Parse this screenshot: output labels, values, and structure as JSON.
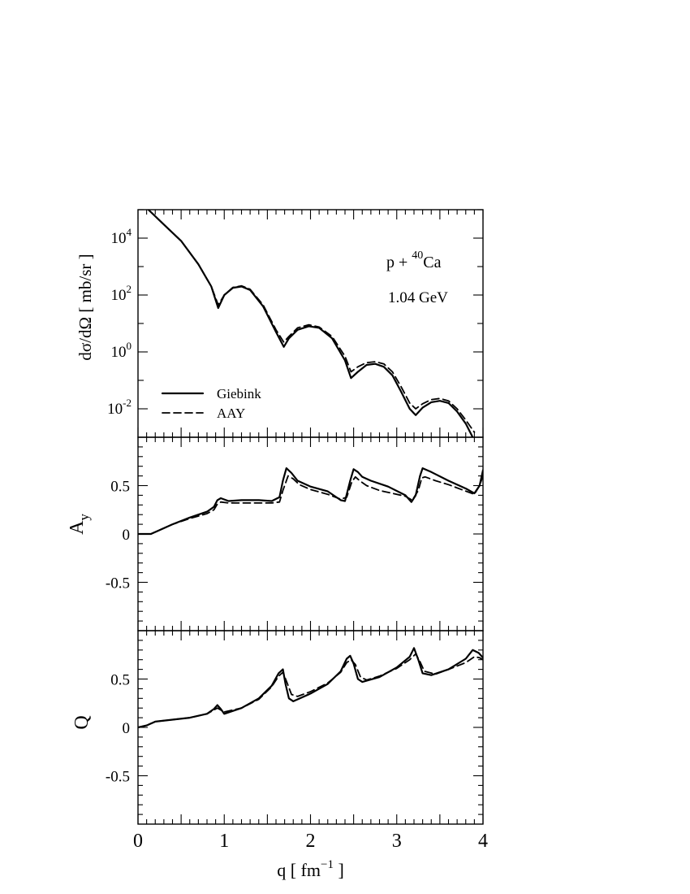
{
  "chart_data": [
    {
      "type": "line",
      "panel": "cross-section",
      "ylabel": "dσ/dΩ  [ mb/sr ]",
      "yscale": "log",
      "ylim": [
        0.001,
        100000
      ],
      "xlim": [
        0,
        4
      ],
      "yticks": [
        {
          "value": 10000,
          "base": "10",
          "exp": "4"
        },
        {
          "value": 100,
          "base": "10",
          "exp": "2"
        },
        {
          "value": 1,
          "base": "10",
          "exp": "0"
        },
        {
          "value": 0.01,
          "base": "10",
          "exp": "-2"
        }
      ],
      "annotations": {
        "reaction_base": "p + ",
        "reaction_mass": "40",
        "reaction_target": "Ca",
        "energy": "1.04 GeV"
      },
      "legend": {
        "placement": "bottom-left",
        "entries": [
          {
            "label": "Giebink",
            "style": "solid"
          },
          {
            "label": "AAY",
            "style": "dashed"
          }
        ]
      },
      "series": [
        {
          "name": "Giebink",
          "x": [
            0.12,
            0.3,
            0.5,
            0.7,
            0.85,
            0.93,
            1.0,
            1.1,
            1.2,
            1.3,
            1.45,
            1.6,
            1.69,
            1.75,
            1.85,
            1.98,
            2.1,
            2.25,
            2.4,
            2.47,
            2.55,
            2.65,
            2.75,
            2.85,
            2.95,
            3.05,
            3.15,
            3.22,
            3.3,
            3.4,
            3.5,
            3.6,
            3.7,
            3.8,
            3.88
          ],
          "y": [
            100000,
            30000,
            8000,
            1200,
            200,
            35,
            100,
            180,
            200,
            150,
            40,
            5,
            1.5,
            3,
            6,
            8,
            7,
            3,
            0.5,
            0.12,
            0.2,
            0.35,
            0.38,
            0.3,
            0.15,
            0.04,
            0.01,
            0.006,
            0.011,
            0.017,
            0.019,
            0.016,
            0.008,
            0.003,
            0.001
          ]
        },
        {
          "name": "AAY",
          "x": [
            0.12,
            0.3,
            0.5,
            0.7,
            0.85,
            0.93,
            1.0,
            1.1,
            1.2,
            1.3,
            1.45,
            1.6,
            1.69,
            1.75,
            1.85,
            1.98,
            2.1,
            2.25,
            2.4,
            2.47,
            2.55,
            2.65,
            2.75,
            2.85,
            2.95,
            3.05,
            3.15,
            3.22,
            3.3,
            3.4,
            3.5,
            3.6,
            3.7,
            3.8,
            3.9
          ],
          "y": [
            100000,
            30000,
            8000,
            1200,
            200,
            45,
            100,
            185,
            210,
            160,
            45,
            6,
            2.2,
            3.5,
            7,
            9,
            7.5,
            3.5,
            0.7,
            0.2,
            0.3,
            0.42,
            0.45,
            0.38,
            0.2,
            0.06,
            0.016,
            0.01,
            0.015,
            0.021,
            0.023,
            0.019,
            0.01,
            0.004,
            0.0015
          ]
        }
      ]
    },
    {
      "type": "line",
      "panel": "analyzing-power",
      "ylabel": "A",
      "ylabel_sub": "y",
      "ylim": [
        -1,
        1
      ],
      "xlim": [
        0,
        4
      ],
      "yticks": [
        {
          "value": 0.5,
          "label": "0.5"
        },
        {
          "value": 0,
          "label": "0"
        },
        {
          "value": -0.5,
          "label": "-0.5"
        }
      ],
      "series": [
        {
          "name": "Giebink",
          "x": [
            0.0,
            0.15,
            0.25,
            0.4,
            0.6,
            0.8,
            0.88,
            0.92,
            0.96,
            1.05,
            1.2,
            1.4,
            1.55,
            1.64,
            1.68,
            1.72,
            1.78,
            1.85,
            2.0,
            2.2,
            2.35,
            2.4,
            2.46,
            2.5,
            2.55,
            2.6,
            2.7,
            2.9,
            3.1,
            3.17,
            3.22,
            3.27,
            3.3,
            3.4,
            3.6,
            3.8,
            3.9,
            3.96,
            4.0
          ],
          "y": [
            0.0,
            0.0,
            0.04,
            0.1,
            0.17,
            0.23,
            0.28,
            0.35,
            0.37,
            0.34,
            0.35,
            0.35,
            0.34,
            0.38,
            0.55,
            0.68,
            0.63,
            0.55,
            0.49,
            0.44,
            0.35,
            0.34,
            0.55,
            0.67,
            0.64,
            0.59,
            0.55,
            0.49,
            0.4,
            0.33,
            0.4,
            0.6,
            0.68,
            0.64,
            0.55,
            0.47,
            0.42,
            0.5,
            0.66
          ]
        },
        {
          "name": "AAY",
          "x": [
            0.0,
            0.15,
            0.25,
            0.4,
            0.6,
            0.8,
            0.88,
            0.92,
            0.96,
            1.05,
            1.2,
            1.4,
            1.55,
            1.64,
            1.68,
            1.74,
            1.8,
            1.87,
            2.0,
            2.2,
            2.35,
            2.42,
            2.48,
            2.52,
            2.57,
            2.65,
            2.8,
            2.95,
            3.1,
            3.18,
            3.25,
            3.29,
            3.33,
            3.45,
            3.6,
            3.75,
            3.9,
            3.96,
            4.0
          ],
          "y": [
            0.0,
            0.0,
            0.04,
            0.1,
            0.16,
            0.21,
            0.25,
            0.31,
            0.33,
            0.32,
            0.32,
            0.32,
            0.32,
            0.33,
            0.45,
            0.6,
            0.57,
            0.51,
            0.46,
            0.41,
            0.36,
            0.38,
            0.54,
            0.59,
            0.55,
            0.5,
            0.45,
            0.42,
            0.39,
            0.35,
            0.45,
            0.58,
            0.59,
            0.55,
            0.51,
            0.46,
            0.41,
            0.5,
            0.6
          ]
        }
      ]
    },
    {
      "type": "line",
      "panel": "spin-rotation",
      "ylabel": "Q",
      "ylim": [
        -1,
        1
      ],
      "xlim": [
        0,
        4
      ],
      "xlabel": "q [ fm",
      "xlabel_exp": "−1",
      "xlabel_tail": " ]",
      "xticks": [
        {
          "value": 0,
          "label": "0"
        },
        {
          "value": 1,
          "label": "1"
        },
        {
          "value": 2,
          "label": "2"
        },
        {
          "value": 3,
          "label": "3"
        },
        {
          "value": 4,
          "label": "4"
        }
      ],
      "yticks": [
        {
          "value": 0.5,
          "label": "0.5"
        },
        {
          "value": 0,
          "label": "0"
        },
        {
          "value": -0.5,
          "label": "-0.5"
        }
      ],
      "series": [
        {
          "name": "Giebink",
          "x": [
            0.0,
            0.1,
            0.2,
            0.4,
            0.6,
            0.8,
            0.88,
            0.92,
            0.96,
            1.0,
            1.2,
            1.4,
            1.55,
            1.63,
            1.68,
            1.71,
            1.75,
            1.8,
            2.0,
            2.2,
            2.35,
            2.42,
            2.46,
            2.5,
            2.55,
            2.6,
            2.8,
            3.0,
            3.15,
            3.2,
            3.25,
            3.3,
            3.4,
            3.6,
            3.8,
            3.88,
            3.95,
            4.0
          ],
          "y": [
            0.0,
            0.02,
            0.06,
            0.08,
            0.1,
            0.14,
            0.19,
            0.23,
            0.19,
            0.14,
            0.2,
            0.3,
            0.43,
            0.56,
            0.6,
            0.45,
            0.3,
            0.27,
            0.35,
            0.45,
            0.58,
            0.71,
            0.74,
            0.66,
            0.5,
            0.47,
            0.52,
            0.62,
            0.73,
            0.82,
            0.7,
            0.56,
            0.54,
            0.6,
            0.71,
            0.8,
            0.77,
            0.72
          ]
        },
        {
          "name": "AAY",
          "x": [
            0.0,
            0.1,
            0.2,
            0.4,
            0.6,
            0.8,
            0.88,
            0.92,
            0.96,
            1.0,
            1.2,
            1.4,
            1.55,
            1.63,
            1.68,
            1.72,
            1.78,
            1.85,
            2.0,
            2.2,
            2.35,
            2.42,
            2.47,
            2.52,
            2.58,
            2.65,
            2.8,
            3.0,
            3.15,
            3.22,
            3.27,
            3.32,
            3.45,
            3.6,
            3.8,
            3.9,
            3.96,
            4.0
          ],
          "y": [
            0.0,
            0.02,
            0.06,
            0.08,
            0.1,
            0.14,
            0.18,
            0.2,
            0.18,
            0.16,
            0.2,
            0.29,
            0.42,
            0.53,
            0.57,
            0.48,
            0.34,
            0.32,
            0.37,
            0.46,
            0.57,
            0.67,
            0.7,
            0.65,
            0.52,
            0.49,
            0.53,
            0.61,
            0.7,
            0.76,
            0.68,
            0.58,
            0.55,
            0.6,
            0.67,
            0.73,
            0.72,
            0.7
          ]
        }
      ]
    }
  ]
}
